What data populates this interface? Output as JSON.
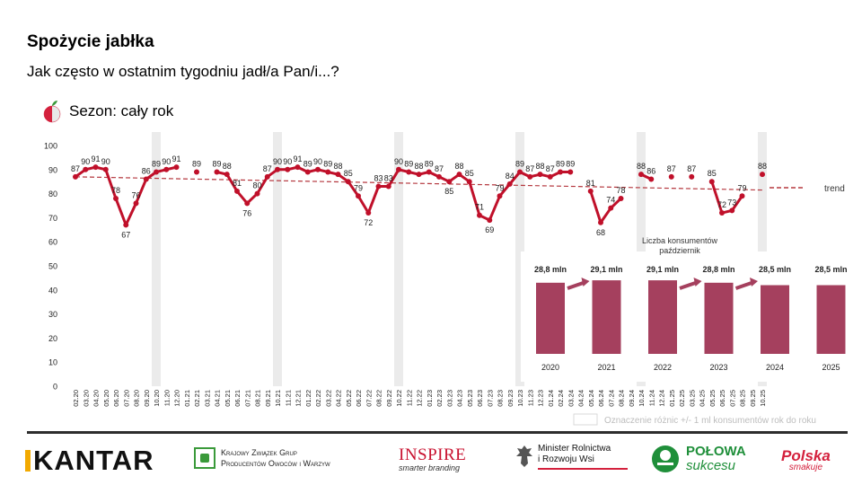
{
  "title": "Spożycie jabłka",
  "subtitle": "Jak często w ostatnim tygodniu jadł/a Pan/i...?",
  "season_label": "Sezon: cały rok",
  "season_icon": "apple-icon",
  "colors": {
    "series": "#c0102a",
    "trend": "#b5383f",
    "bars": "#a5405e",
    "arrow": "#a5405e",
    "shading": "#ebebeb",
    "axis_text": "#222222"
  },
  "chart_data": [
    {
      "type": "line",
      "ylim": [
        0,
        100
      ],
      "yticks": [
        0,
        10,
        20,
        30,
        40,
        50,
        60,
        70,
        80,
        90,
        100
      ],
      "x": [
        "02.20",
        "03.20",
        "04.20",
        "05.20",
        "06.20",
        "07.20",
        "08.20",
        "09.20",
        "10.20",
        "11.20",
        "12.20",
        "01.21",
        "02.21",
        "03.21",
        "04.21",
        "05.21",
        "06.21",
        "07.21",
        "08.21",
        "09.21",
        "10.21",
        "11.21",
        "12.21",
        "01.22",
        "02.22",
        "03.22",
        "04.22",
        "05.22",
        "06.22",
        "07.22",
        "08.22",
        "09.22",
        "10.22",
        "11.22",
        "12.22",
        "01.23",
        "02.23",
        "03.23",
        "04.23",
        "05.23",
        "06.23",
        "07.23",
        "08.23",
        "09.23",
        "10.23",
        "11.23",
        "12.23",
        "01.24",
        "02.24",
        "03.24",
        "04.24",
        "05.24",
        "06.24",
        "07.24",
        "08.24",
        "09.24",
        "10.24",
        "11.24",
        "12.24",
        "01.25",
        "02.25",
        "03.25",
        "04.25",
        "05.25",
        "06.25",
        "07.25",
        "08.25",
        "09.25",
        "10.25"
      ],
      "series": [
        {
          "values": [
            87,
            90,
            91,
            90,
            78,
            67,
            76,
            86,
            89,
            90,
            91,
            null,
            89,
            null,
            89,
            88,
            81,
            76,
            80,
            87,
            90,
            90,
            91,
            89,
            90,
            89,
            88,
            85,
            79,
            72,
            83,
            83,
            90,
            89,
            88,
            89,
            87,
            85,
            88,
            85,
            71,
            69,
            79,
            84,
            89,
            87,
            88,
            87,
            89,
            89,
            null,
            81,
            68,
            74,
            78,
            null,
            88,
            86,
            null,
            87,
            null,
            87,
            null,
            85,
            72,
            73,
            79,
            null,
            88
          ],
          "labels": [
            87,
            90,
            91,
            90,
            78,
            67,
            76,
            86,
            89,
            90,
            91,
            null,
            89,
            null,
            89,
            88,
            81,
            76,
            80,
            87,
            90,
            90,
            91,
            89,
            90,
            89,
            88,
            85,
            79,
            72,
            83,
            83,
            90,
            89,
            88,
            89,
            87,
            85,
            88,
            85,
            71,
            69,
            79,
            84,
            89,
            87,
            88,
            87,
            89,
            89,
            null,
            81,
            68,
            74,
            78,
            null,
            88,
            86,
            null,
            87,
            null,
            87,
            null,
            85,
            72,
            73,
            79,
            null,
            88
          ]
        }
      ],
      "trend": {
        "label": "trend",
        "start": 87,
        "end": 81.5
      },
      "shaded_months": [
        "10.20",
        "10.21",
        "10.22",
        "10.23",
        "10.24",
        "10.25"
      ]
    },
    {
      "type": "bar",
      "title": "Liczba konsumentów październik",
      "categories": [
        "2020",
        "2021",
        "2022",
        "2023",
        "2024",
        "2025"
      ],
      "values": [
        28.8,
        29.1,
        29.1,
        28.8,
        28.5,
        28.5
      ],
      "value_labels": [
        "28,8 mln",
        "29,1 mln",
        "29,1 mln",
        "28,8 mln",
        "28,5 mln",
        "28,5 mln"
      ],
      "arrows_after": [
        "2020",
        "2022",
        "2023"
      ],
      "arrow_direction": "up",
      "unit": "mln"
    }
  ],
  "legend_note": "Oznaczenie różnic +/- 1 ml konsumentów rok do roku",
  "logos": {
    "kantar": "KANTAR",
    "kzgpow_line1": "Krajowy Związek Grup",
    "kzgpow_line2": "Producentów Owoców i Warzyw",
    "inspire": "INSPIRE",
    "inspire_sub": "smarter branding",
    "minister_line1": "Minister Rolnictwa",
    "minister_line2": "i Rozwoju Wsi",
    "polowa_line1": "POŁOWA",
    "polowa_line2": "sukcesu",
    "polska_line1": "Polska",
    "polska_line2": "smakuje"
  }
}
